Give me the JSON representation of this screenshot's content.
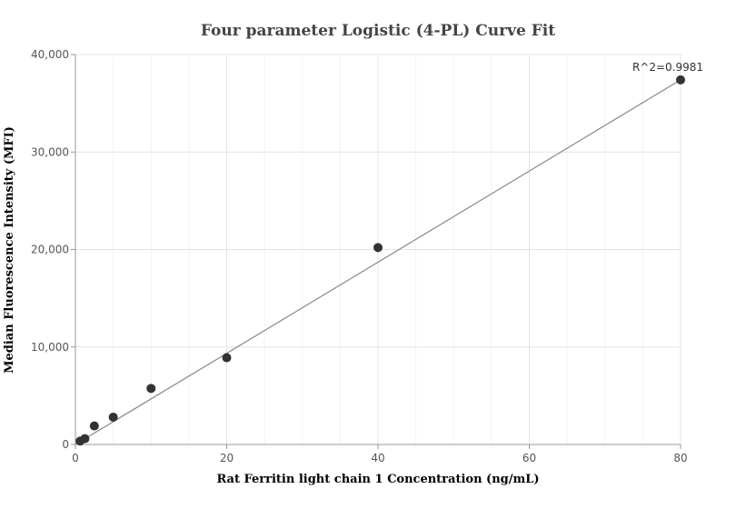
{
  "chart_data": {
    "type": "scatter",
    "title": "Four parameter Logistic (4-PL) Curve Fit",
    "xlabel": "Rat Ferritin light chain 1 Concentration (ng/mL)",
    "ylabel": "Median Fluorescence Intensity (MFI)",
    "xlim": [
      0,
      80
    ],
    "ylim": [
      0,
      40000
    ],
    "x_ticks": [
      0,
      20,
      40,
      60,
      80
    ],
    "y_ticks": [
      0,
      10000,
      20000,
      30000,
      40000
    ],
    "x_tick_labels": [
      "0",
      "20",
      "40",
      "60",
      "80"
    ],
    "y_tick_labels": [
      "0",
      "10,000",
      "20,000",
      "30,000",
      "40,000"
    ],
    "grid": true,
    "series": [
      {
        "points": [
          {
            "x": 0.625,
            "y": 350
          },
          {
            "x": 1.25,
            "y": 600
          },
          {
            "x": 2.5,
            "y": 1900
          },
          {
            "x": 5,
            "y": 2800
          },
          {
            "x": 10,
            "y": 5750
          },
          {
            "x": 20,
            "y": 8900
          },
          {
            "x": 40,
            "y": 20200
          },
          {
            "x": 80,
            "y": 37400
          }
        ],
        "color": "#333333"
      }
    ],
    "fit_line": {
      "points": [
        {
          "x": 0,
          "y": 0
        },
        {
          "x": 80,
          "y": 37400
        }
      ],
      "color": "#888888"
    },
    "annotation": "R^2=0.9981"
  }
}
